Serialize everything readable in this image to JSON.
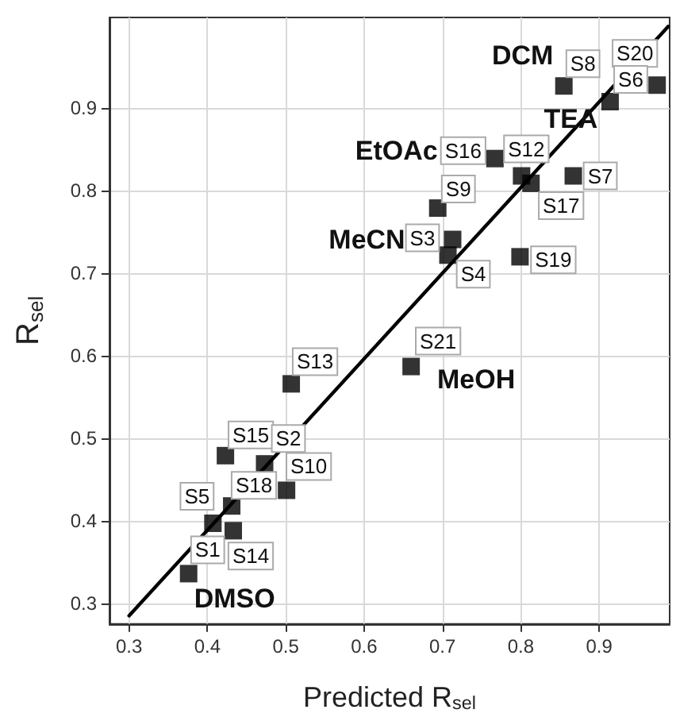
{
  "chart_data": {
    "type": "scatter",
    "xlabel": "Predicted R$_{sel}$",
    "ylabel": "R$_{sel}$",
    "xlim": [
      0.275,
      0.99
    ],
    "ylim": [
      0.275,
      1.01
    ],
    "xticks": [
      0.3,
      0.4,
      0.5,
      0.6,
      0.7,
      0.8,
      0.9
    ],
    "yticks": [
      0.3,
      0.4,
      0.5,
      0.6,
      0.7,
      0.8,
      0.9
    ],
    "grid": true,
    "marker": "square",
    "series": [
      {
        "color": "#000000",
        "x": [
          0.974,
          0.914,
          0.855,
          0.767,
          0.801,
          0.813,
          0.867,
          0.694,
          0.713,
          0.707,
          0.799,
          0.507,
          0.66,
          0.423,
          0.473,
          0.501,
          0.431,
          0.407,
          0.433,
          0.376
        ],
        "values": [
          0.928,
          0.908,
          0.927,
          0.839,
          0.818,
          0.809,
          0.818,
          0.779,
          0.741,
          0.722,
          0.72,
          0.566,
          0.587,
          0.479,
          0.469,
          0.437,
          0.418,
          0.397,
          0.388,
          0.336
        ]
      },
      {
        "type": "line",
        "color": "#000000",
        "marker": "none",
        "x": [
          0.3,
          0.988
        ],
        "values": [
          0.285,
          0.999
        ]
      }
    ],
    "annotations": [
      {
        "text": "S8",
        "x": 0.855,
        "y": 0.927
      },
      {
        "text": "S20",
        "x": 0.974,
        "y": 0.928
      },
      {
        "text": "S6",
        "x": 0.914,
        "y": 0.908
      },
      {
        "text": "S16",
        "x": 0.767,
        "y": 0.839
      },
      {
        "text": "S12",
        "x": 0.801,
        "y": 0.818
      },
      {
        "text": "S7",
        "x": 0.867,
        "y": 0.818
      },
      {
        "text": "S17",
        "x": 0.813,
        "y": 0.809
      },
      {
        "text": "S9",
        "x": 0.694,
        "y": 0.779
      },
      {
        "text": "S3",
        "x": 0.713,
        "y": 0.741
      },
      {
        "text": "S4",
        "x": 0.707,
        "y": 0.722
      },
      {
        "text": "S19",
        "x": 0.799,
        "y": 0.72
      },
      {
        "text": "S21",
        "x": 0.66,
        "y": 0.587
      },
      {
        "text": "S13",
        "x": 0.507,
        "y": 0.566
      },
      {
        "text": "S15",
        "x": 0.423,
        "y": 0.479
      },
      {
        "text": "S2",
        "x": 0.473,
        "y": 0.469
      },
      {
        "text": "S10",
        "x": 0.501,
        "y": 0.437
      },
      {
        "text": "S18",
        "x": 0.431,
        "y": 0.418
      },
      {
        "text": "S5",
        "x": 0.407,
        "y": 0.397
      },
      {
        "text": "S1",
        "x": 0.376,
        "y": 0.336
      },
      {
        "text": "S14",
        "x": 0.433,
        "y": 0.388
      },
      {
        "text": "DCM",
        "x": 0.855,
        "y": 0.927
      },
      {
        "text": "TEA",
        "x": 0.801,
        "y": 0.818
      },
      {
        "text": "EtOAc",
        "x": 0.767,
        "y": 0.839
      },
      {
        "text": "MeCN",
        "x": 0.713,
        "y": 0.741
      },
      {
        "text": "MeOH",
        "x": 0.66,
        "y": 0.587
      },
      {
        "text": "DMSO",
        "x": 0.376,
        "y": 0.336
      }
    ]
  }
}
